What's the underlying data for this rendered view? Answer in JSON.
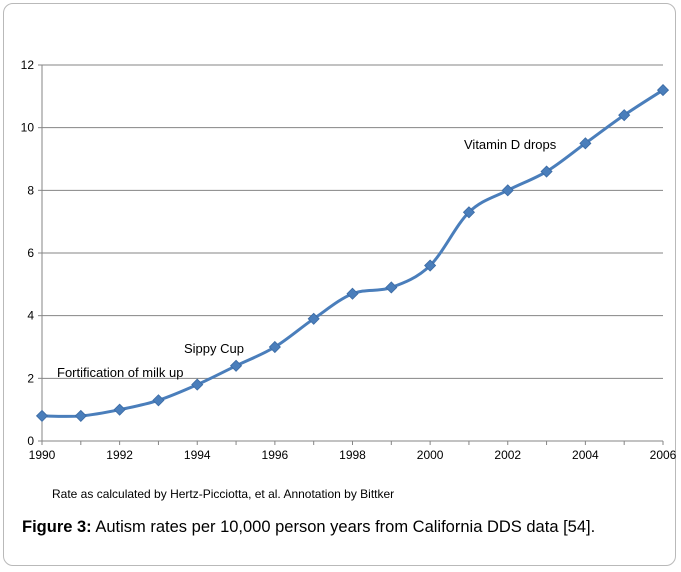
{
  "chart_data": {
    "type": "line",
    "title": "",
    "xlabel": "",
    "ylabel": "",
    "xlim": [
      1990,
      2006
    ],
    "ylim": [
      0,
      12
    ],
    "x_ticks": [
      "1990",
      "1992",
      "1994",
      "1996",
      "1998",
      "2000",
      "2002",
      "2004",
      "2006"
    ],
    "y_ticks": [
      "0",
      "2",
      "4",
      "6",
      "8",
      "10",
      "12"
    ],
    "grid": "horizontal",
    "legend": "none",
    "series": [
      {
        "x": [
          1990,
          1991,
          1992,
          1993,
          1994,
          1995,
          1996,
          1997,
          1998,
          1999,
          2000,
          2001,
          2002,
          2003,
          2004,
          2005,
          2006
        ],
        "y": [
          0.8,
          0.8,
          1.0,
          1.3,
          1.8,
          2.4,
          3.0,
          3.9,
          4.7,
          4.9,
          5.6,
          7.3,
          8.0,
          8.6,
          9.5,
          10.4,
          11.2
        ],
        "color": "#4a7ebb"
      }
    ],
    "annotations": [
      {
        "text": "Fortification of milk up",
        "x": 1994
      },
      {
        "text": "Sippy Cup",
        "x": 1995
      },
      {
        "text": "Vitamin D drops",
        "x": 2003
      }
    ]
  },
  "note": "Rate as calculated by Hertz-Picciotta, et al.  Annotation by Bittker",
  "caption": {
    "label": "Figure 3:",
    "text": " Autism rates per 10,000 person years from California DDS data [54]."
  }
}
